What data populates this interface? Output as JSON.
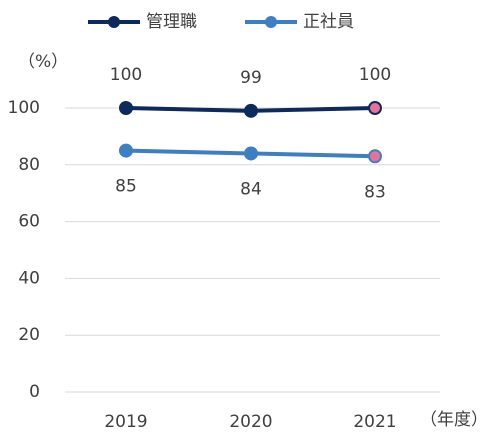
{
  "chart_data": {
    "type": "line",
    "categories": [
      "2019",
      "2020",
      "2021"
    ],
    "series": [
      {
        "name": "管理職",
        "color": "#0d2a5e",
        "values": [
          100,
          99,
          100
        ]
      },
      {
        "name": "正社員",
        "color": "#3c7fc4",
        "values": [
          85,
          84,
          83
        ]
      }
    ],
    "highlight_color": "#e8719a",
    "y_label": "（%）",
    "x_label": "（年度）",
    "ylim": [
      0,
      100
    ],
    "yticks": [
      0,
      20,
      40,
      60,
      80,
      100
    ],
    "grid": true,
    "legend": "top"
  }
}
